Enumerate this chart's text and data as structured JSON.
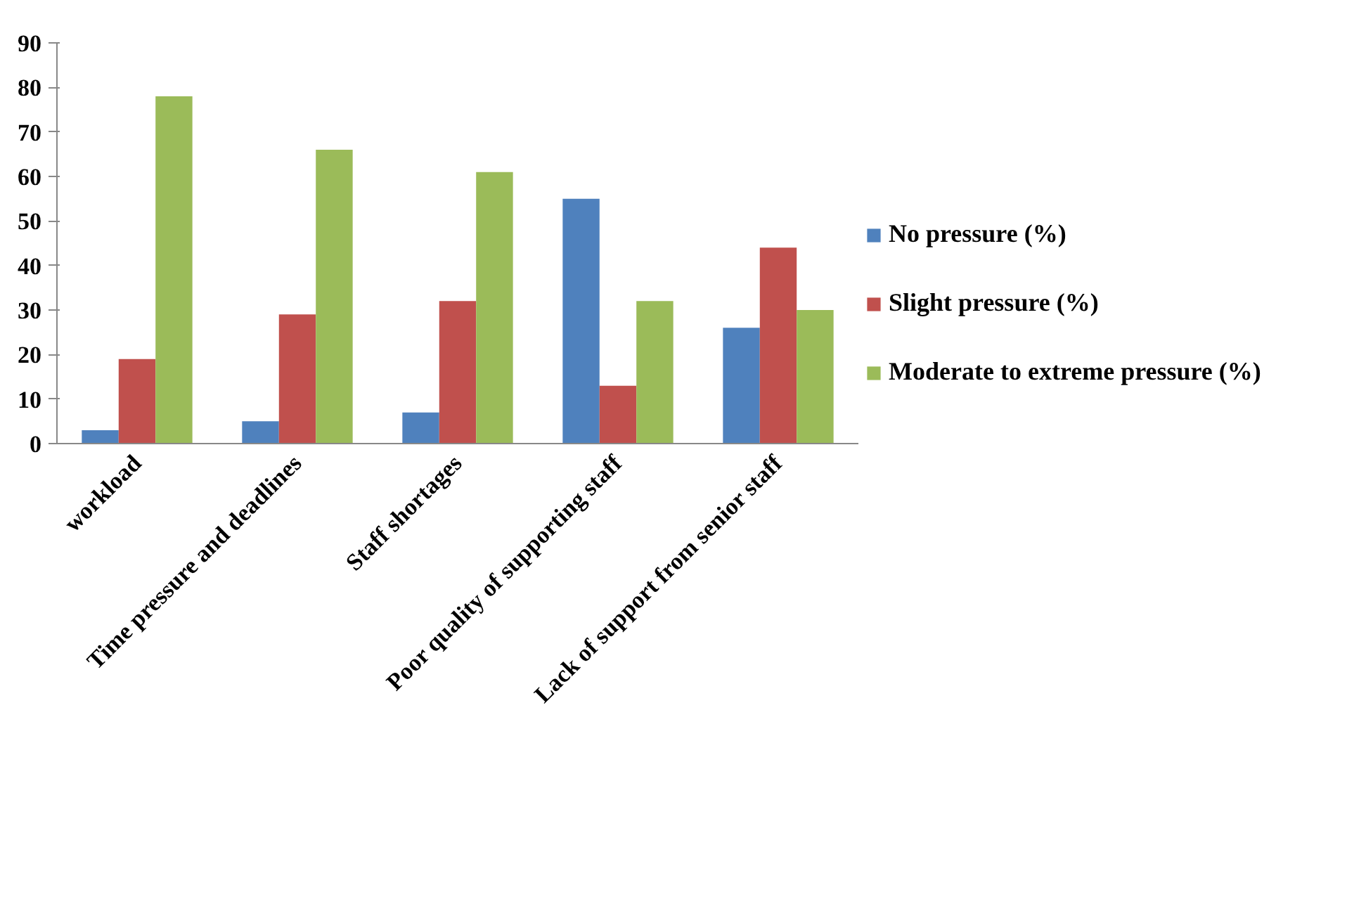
{
  "chart_data": {
    "type": "bar",
    "categories": [
      "workload",
      "Time pressure and deadlines",
      "Staff shortages",
      "Poor quality of supporting staff",
      "Lack of support from senior staff"
    ],
    "series": [
      {
        "name": "No pressure (%)",
        "color": "#4f81bd",
        "values": [
          3,
          5,
          7,
          55,
          26
        ]
      },
      {
        "name": "Slight pressure (%)",
        "color": "#c0504d",
        "values": [
          19,
          29,
          32,
          13,
          44
        ]
      },
      {
        "name": "Moderate to extreme pressure (%)",
        "color": "#9bbb59",
        "values": [
          78,
          66,
          61,
          32,
          30
        ]
      }
    ],
    "ylim": [
      0,
      90
    ],
    "yticks": [
      0,
      10,
      20,
      30,
      40,
      50,
      60,
      70,
      80,
      90
    ],
    "grid": false,
    "legend": "right"
  }
}
